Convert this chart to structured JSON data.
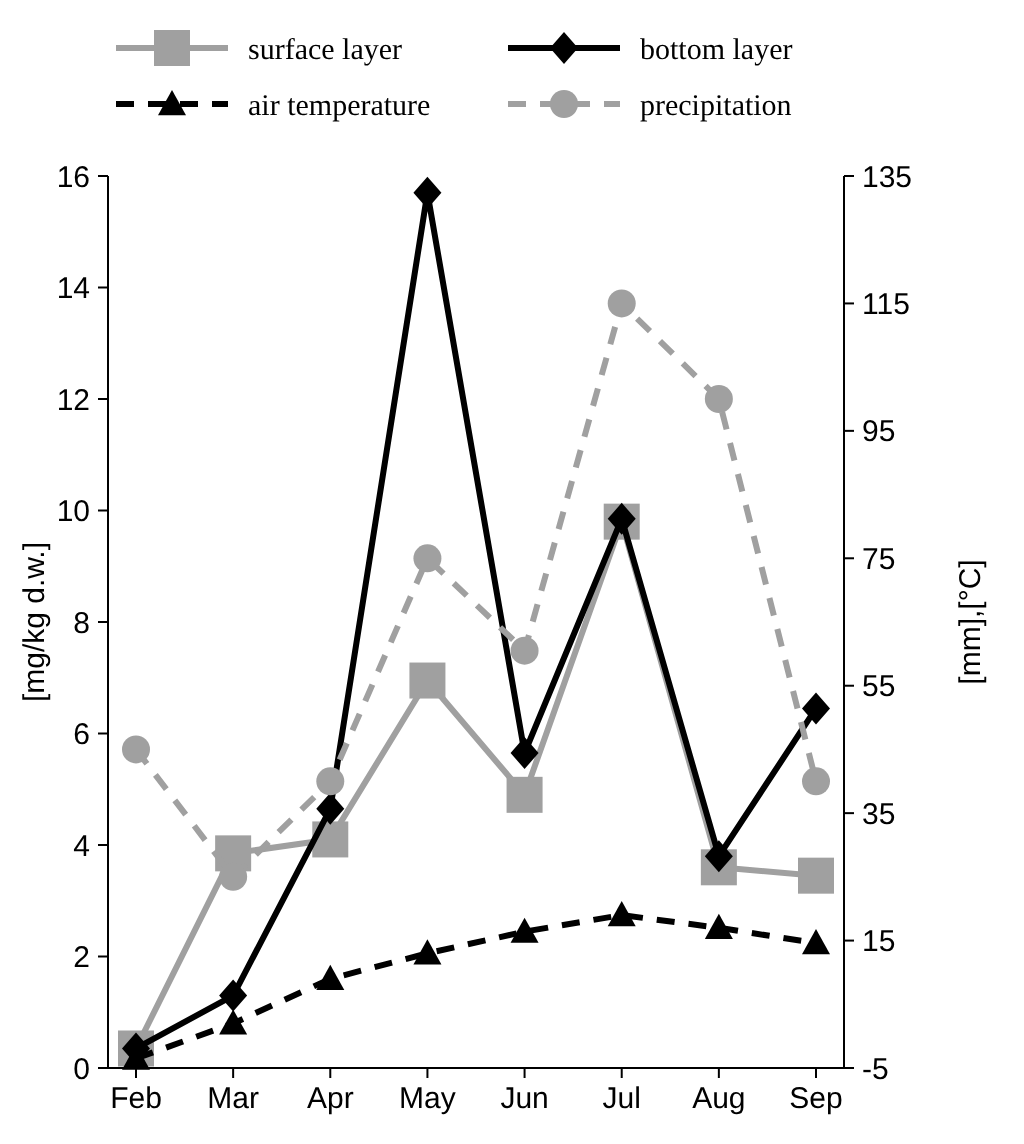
{
  "chart_data": {
    "type": "line",
    "ylabel": "[mg/kg d.w.]",
    "y2label": "[mm],[°C]",
    "categories": [
      "Feb",
      "Mar",
      "Apr",
      "May",
      "Jun",
      "Jul",
      "Aug",
      "Sep"
    ],
    "ylim": [
      0,
      16
    ],
    "yticks": [
      0,
      2,
      4,
      6,
      8,
      10,
      12,
      14,
      16
    ],
    "y2lim": [
      -5,
      135
    ],
    "y2ticks": [
      -5,
      15,
      35,
      55,
      75,
      95,
      115,
      135
    ],
    "grid": false,
    "legend": "top",
    "series": [
      {
        "name": "surface layer",
        "color": "#a0a0a0",
        "marker": "square",
        "line_style": "solid",
        "values": [
          0.35,
          3.85,
          4.1,
          6.95,
          4.9,
          9.8,
          3.6,
          3.45
        ]
      },
      {
        "name": "bottom layer",
        "color": "#000000",
        "marker": "diamond",
        "line_style": "solid",
        "values": [
          0.35,
          1.3,
          4.65,
          15.7,
          5.65,
          9.85,
          3.8,
          6.45
        ]
      },
      {
        "name": "air temperature",
        "color": "#000000",
        "marker": "triangle",
        "line_style": "dashed",
        "axis": "y2",
        "values": [
          -3.5,
          2,
          9,
          13,
          16.4,
          19,
          17,
          14.6
        ]
      },
      {
        "name": "precipitation",
        "color": "#a0a0a0",
        "marker": "circle",
        "line_style": "dashed",
        "axis": "y2",
        "values": [
          45,
          25,
          40,
          75,
          60.5,
          115,
          100,
          40
        ]
      }
    ]
  }
}
